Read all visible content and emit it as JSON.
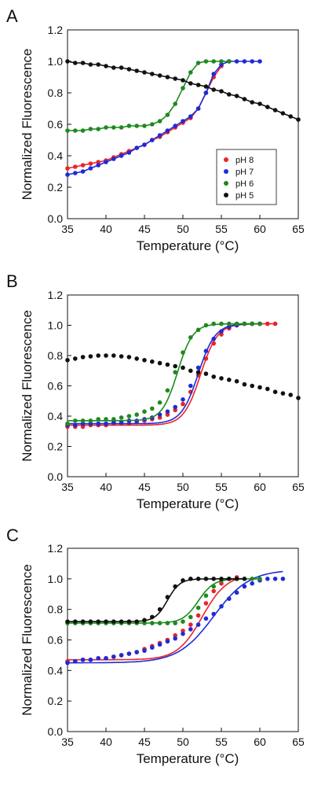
{
  "chart_data": [
    {
      "type": "scatter",
      "panel_label": "A",
      "xlabel": "Temperature (°C)",
      "ylabel": "Normalized Fluorescence",
      "xlim": [
        35,
        65
      ],
      "ylim": [
        0,
        1.2
      ],
      "xticks": [
        "35",
        "40",
        "45",
        "50",
        "55",
        "60",
        "65"
      ],
      "yticks": [
        "0.0",
        "0.2",
        "0.4",
        "0.6",
        "0.8",
        "1.0",
        "1.2"
      ],
      "grid": false,
      "legend": {
        "placement": "lower-right",
        "entries": [
          "pH 8",
          "pH 7",
          "pH 6",
          "pH 5"
        ]
      },
      "series": [
        {
          "name": "pH 8",
          "color": "#e8242a",
          "x": [
            35,
            36,
            37,
            38,
            39,
            40,
            41,
            42,
            43,
            44,
            45,
            46,
            47,
            48,
            49,
            50,
            51,
            52,
            53,
            54,
            55
          ],
          "y": [
            0.32,
            0.33,
            0.34,
            0.35,
            0.36,
            0.37,
            0.39,
            0.41,
            0.43,
            0.45,
            0.47,
            0.5,
            0.52,
            0.55,
            0.58,
            0.61,
            0.64,
            0.7,
            0.8,
            0.9,
            0.97
          ]
        },
        {
          "name": "pH 7",
          "color": "#1f2bd6",
          "x": [
            35,
            36,
            37,
            38,
            39,
            40,
            41,
            42,
            43,
            44,
            45,
            46,
            47,
            48,
            49,
            50,
            51,
            52,
            53,
            54,
            55,
            56,
            57,
            58,
            59,
            60
          ],
          "y": [
            0.28,
            0.29,
            0.3,
            0.32,
            0.34,
            0.36,
            0.38,
            0.4,
            0.42,
            0.45,
            0.47,
            0.5,
            0.53,
            0.56,
            0.59,
            0.62,
            0.65,
            0.7,
            0.8,
            0.92,
            0.98,
            1.0,
            1.0,
            1.0,
            1.0,
            1.0
          ]
        },
        {
          "name": "pH 6",
          "color": "#1e8a1e",
          "x": [
            35,
            36,
            37,
            38,
            39,
            40,
            41,
            42,
            43,
            44,
            45,
            46,
            47,
            48,
            49,
            50,
            51,
            52,
            53,
            54,
            55,
            56
          ],
          "y": [
            0.56,
            0.56,
            0.56,
            0.57,
            0.57,
            0.58,
            0.58,
            0.58,
            0.59,
            0.59,
            0.59,
            0.6,
            0.62,
            0.66,
            0.73,
            0.83,
            0.93,
            0.99,
            1.0,
            1.0,
            1.0,
            1.0
          ]
        },
        {
          "name": "pH 5",
          "color": "#111111",
          "x": [
            35,
            36,
            37,
            38,
            39,
            40,
            41,
            42,
            43,
            44,
            45,
            46,
            47,
            48,
            49,
            50,
            51,
            52,
            53,
            54,
            55,
            56,
            57,
            58,
            59,
            60,
            61,
            62,
            63,
            64,
            65
          ],
          "y": [
            1.0,
            0.99,
            0.99,
            0.98,
            0.98,
            0.97,
            0.96,
            0.96,
            0.95,
            0.94,
            0.93,
            0.92,
            0.91,
            0.9,
            0.89,
            0.88,
            0.86,
            0.85,
            0.84,
            0.82,
            0.81,
            0.79,
            0.78,
            0.76,
            0.74,
            0.73,
            0.71,
            0.69,
            0.67,
            0.65,
            0.63
          ]
        }
      ]
    },
    {
      "type": "scatter",
      "panel_label": "B",
      "xlabel": "Temperature (°C)",
      "ylabel": "Normalized Fluorescence",
      "xlim": [
        35,
        65
      ],
      "ylim": [
        0,
        1.2
      ],
      "xticks": [
        "35",
        "40",
        "45",
        "50",
        "55",
        "60",
        "65"
      ],
      "yticks": [
        "0.0",
        "0.2",
        "0.4",
        "0.6",
        "0.8",
        "1.0",
        "1.2"
      ],
      "grid": false,
      "series": [
        {
          "name": "pH 8",
          "color": "#e8242a",
          "fit": [
            0.34,
            1.01,
            52.3,
            1.1
          ],
          "x": [
            35,
            36,
            37,
            38,
            39,
            40,
            41,
            42,
            43,
            44,
            45,
            46,
            47,
            48,
            49,
            50,
            51,
            52,
            53,
            54,
            55,
            56,
            57,
            58,
            59,
            60,
            61,
            62
          ],
          "y": [
            0.33,
            0.33,
            0.33,
            0.34,
            0.34,
            0.34,
            0.35,
            0.35,
            0.35,
            0.36,
            0.37,
            0.38,
            0.39,
            0.41,
            0.44,
            0.48,
            0.56,
            0.67,
            0.78,
            0.88,
            0.94,
            0.98,
            1.0,
            1.01,
            1.01,
            1.01,
            1.01,
            1.01
          ]
        },
        {
          "name": "pH 7",
          "color": "#1f2bd6",
          "fit": [
            0.35,
            1.01,
            52.0,
            1.1
          ],
          "x": [
            35,
            36,
            37,
            38,
            39,
            40,
            41,
            42,
            43,
            44,
            45,
            46,
            47,
            48,
            49,
            50,
            51,
            52,
            53,
            54,
            55,
            56,
            57,
            58,
            59,
            60
          ],
          "y": [
            0.34,
            0.34,
            0.35,
            0.35,
            0.35,
            0.35,
            0.36,
            0.36,
            0.37,
            0.37,
            0.38,
            0.39,
            0.41,
            0.43,
            0.46,
            0.51,
            0.6,
            0.72,
            0.83,
            0.91,
            0.96,
            0.99,
            1.0,
            1.01,
            1.01,
            1.01
          ]
        },
        {
          "name": "pH 6",
          "color": "#1e8a1e",
          "fit": [
            0.37,
            1.01,
            49.3,
            1.0
          ],
          "x": [
            35,
            36,
            37,
            38,
            39,
            40,
            41,
            42,
            43,
            44,
            45,
            46,
            47,
            48,
            49,
            50,
            51,
            52,
            53,
            54,
            55,
            56,
            57,
            58,
            59,
            60
          ],
          "y": [
            0.35,
            0.37,
            0.37,
            0.37,
            0.38,
            0.38,
            0.38,
            0.39,
            0.4,
            0.41,
            0.43,
            0.45,
            0.49,
            0.57,
            0.69,
            0.82,
            0.92,
            0.97,
            1.0,
            1.01,
            1.01,
            1.01,
            1.01,
            1.01,
            1.01,
            1.01
          ]
        },
        {
          "name": "pH 5",
          "color": "#111111",
          "x": [
            35,
            36,
            37,
            38,
            39,
            40,
            41,
            42,
            43,
            44,
            45,
            46,
            47,
            48,
            49,
            50,
            51,
            52,
            53,
            54,
            55,
            56,
            57,
            58,
            59,
            60,
            61,
            62,
            63,
            64,
            65
          ],
          "y": [
            0.77,
            0.78,
            0.79,
            0.795,
            0.8,
            0.8,
            0.8,
            0.795,
            0.79,
            0.78,
            0.77,
            0.76,
            0.75,
            0.74,
            0.73,
            0.72,
            0.7,
            0.69,
            0.68,
            0.66,
            0.65,
            0.64,
            0.63,
            0.61,
            0.6,
            0.59,
            0.58,
            0.56,
            0.55,
            0.54,
            0.52
          ]
        }
      ]
    },
    {
      "type": "scatter",
      "panel_label": "C",
      "xlabel": "Temperature (°C)",
      "ylabel": "Normalized Fluorescence",
      "xlim": [
        35,
        65
      ],
      "ylim": [
        0,
        1.2
      ],
      "xticks": [
        "35",
        "40",
        "45",
        "50",
        "55",
        "60",
        "65"
      ],
      "yticks": [
        "0.0",
        "0.2",
        "0.4",
        "0.6",
        "0.8",
        "1.0",
        "1.2"
      ],
      "grid": false,
      "series": [
        {
          "name": "pH 8",
          "color": "#e8242a",
          "fit": [
            0.47,
            1.03,
            52.5,
            1.6
          ],
          "x": [
            35,
            36,
            37,
            38,
            39,
            40,
            41,
            42,
            43,
            44,
            45,
            46,
            47,
            48,
            49,
            50,
            51,
            52,
            53,
            54,
            55,
            56,
            57
          ],
          "y": [
            0.46,
            0.46,
            0.47,
            0.47,
            0.48,
            0.48,
            0.49,
            0.5,
            0.51,
            0.52,
            0.54,
            0.56,
            0.58,
            0.6,
            0.63,
            0.66,
            0.7,
            0.76,
            0.84,
            0.92,
            0.97,
            1.0,
            1.01
          ]
        },
        {
          "name": "pH 7",
          "color": "#1f2bd6",
          "fit": [
            0.45,
            1.06,
            54.0,
            2.3
          ],
          "x": [
            35,
            36,
            37,
            38,
            39,
            40,
            41,
            42,
            43,
            44,
            45,
            46,
            47,
            48,
            49,
            50,
            51,
            52,
            53,
            54,
            55,
            56,
            57,
            58,
            59,
            60,
            61,
            62,
            63
          ],
          "y": [
            0.45,
            0.46,
            0.47,
            0.47,
            0.48,
            0.48,
            0.49,
            0.5,
            0.51,
            0.52,
            0.53,
            0.55,
            0.57,
            0.59,
            0.61,
            0.64,
            0.67,
            0.7,
            0.74,
            0.77,
            0.82,
            0.87,
            0.91,
            0.95,
            0.97,
            0.99,
            1.0,
            1.0,
            1.0
          ]
        },
        {
          "name": "pH 6",
          "color": "#1e8a1e",
          "fit": [
            0.71,
            1.0,
            52.0,
            1.0
          ],
          "x": [
            35,
            36,
            37,
            38,
            39,
            40,
            41,
            42,
            43,
            44,
            45,
            46,
            47,
            48,
            49,
            50,
            51,
            52,
            53,
            54,
            55,
            56,
            57,
            58,
            59,
            60
          ],
          "y": [
            0.71,
            0.71,
            0.71,
            0.71,
            0.71,
            0.71,
            0.71,
            0.71,
            0.71,
            0.71,
            0.71,
            0.71,
            0.71,
            0.71,
            0.71,
            0.72,
            0.75,
            0.81,
            0.89,
            0.95,
            0.99,
            1.0,
            1.0,
            1.0,
            1.0,
            1.0
          ]
        },
        {
          "name": "pH 5",
          "color": "#111111",
          "fit": [
            0.72,
            1.0,
            48.0,
            0.8
          ],
          "x": [
            35,
            36,
            37,
            38,
            39,
            40,
            41,
            42,
            43,
            44,
            45,
            46,
            47,
            48,
            49,
            50,
            51,
            52,
            53,
            54,
            55,
            56,
            57,
            58
          ],
          "y": [
            0.72,
            0.72,
            0.72,
            0.72,
            0.72,
            0.72,
            0.72,
            0.72,
            0.72,
            0.72,
            0.73,
            0.75,
            0.8,
            0.88,
            0.95,
            0.99,
            1.0,
            1.0,
            1.0,
            1.0,
            1.0,
            1.0,
            1.0,
            1.0
          ]
        }
      ]
    }
  ]
}
